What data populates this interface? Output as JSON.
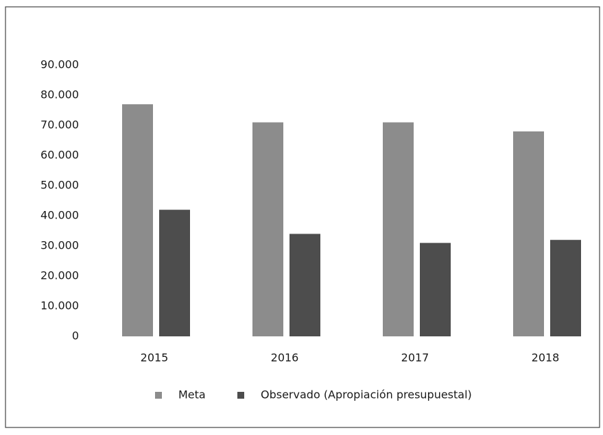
{
  "chart_data": {
    "type": "bar",
    "categories": [
      "2015",
      "2016",
      "2017",
      "2018"
    ],
    "series": [
      {
        "name": "Meta",
        "color": "#8c8c8c",
        "values": [
          77000,
          71000,
          71000,
          68000
        ]
      },
      {
        "name": "Observado (Apropiación presupuestal)",
        "color": "#4d4d4d",
        "values": [
          42000,
          34000,
          31000,
          32000
        ]
      }
    ],
    "ylim": [
      0,
      90000
    ],
    "yticks": [
      0,
      {
        "value": 10000,
        "label": "10.000"
      },
      {
        "value": 20000,
        "label": "20.000"
      },
      {
        "value": 30000,
        "label": "30.000"
      },
      {
        "value": 40000,
        "label": "40.000"
      },
      {
        "value": 50000,
        "label": "50.000"
      },
      {
        "value": 60000,
        "label": "60.000"
      },
      {
        "value": 70000,
        "label": "70.000"
      },
      {
        "value": 80000,
        "label": "80.000"
      },
      {
        "value": 90000,
        "label": "90.000"
      }
    ],
    "grid": false,
    "legend": "bottom"
  }
}
